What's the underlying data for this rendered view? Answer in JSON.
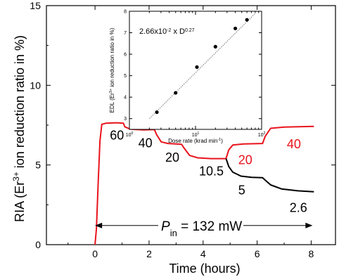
{
  "chart_data": [
    {
      "type": "line",
      "xlabel": "Time (hours)",
      "ylabel_parts": {
        "pre": "RIA (Er",
        "sup": "3+",
        "post": " ion reduction ratio in %)"
      },
      "xlim": [
        -1.8,
        8.9
      ],
      "ylim": [
        0,
        15
      ],
      "xticks": [
        0,
        2,
        4,
        6,
        8
      ],
      "yticks": [
        0,
        5,
        10,
        15
      ],
      "grid": false,
      "colors": {
        "red": "#e8141c",
        "black": "#000000"
      },
      "series": [
        {
          "color": "#e8141c",
          "points": [
            [
              0,
              0
            ],
            [
              0.05,
              1.0
            ],
            [
              0.12,
              4.0
            ],
            [
              0.18,
              6.5
            ],
            [
              0.25,
              7.55
            ],
            [
              0.4,
              7.62
            ],
            [
              0.8,
              7.65
            ],
            [
              1.05,
              7.62
            ],
            [
              1.1,
              7.4
            ],
            [
              1.3,
              7.25
            ],
            [
              1.8,
              7.2
            ],
            [
              2.2,
              7.22
            ],
            [
              2.28,
              6.9
            ],
            [
              2.45,
              6.45
            ],
            [
              2.7,
              6.35
            ],
            [
              3.2,
              6.3
            ],
            [
              3.3,
              6.05
            ],
            [
              3.5,
              5.6
            ],
            [
              3.8,
              5.45
            ],
            [
              4.3,
              5.4
            ],
            [
              4.85,
              5.4
            ],
            [
              4.95,
              5.95
            ],
            [
              5.1,
              6.25
            ],
            [
              5.5,
              6.32
            ],
            [
              6.2,
              6.35
            ],
            [
              6.3,
              6.8
            ],
            [
              6.5,
              7.3
            ],
            [
              7.0,
              7.38
            ],
            [
              8.1,
              7.42
            ]
          ]
        },
        {
          "color": "#000000",
          "points": [
            [
              4.85,
              5.4
            ],
            [
              4.95,
              4.9
            ],
            [
              5.1,
              4.55
            ],
            [
              5.4,
              4.3
            ],
            [
              5.8,
              4.22
            ],
            [
              6.2,
              4.2
            ],
            [
              6.3,
              4.05
            ],
            [
              6.5,
              3.75
            ],
            [
              6.9,
              3.5
            ],
            [
              7.5,
              3.38
            ],
            [
              8.1,
              3.32
            ]
          ]
        }
      ],
      "annotations": [
        {
          "text": "60",
          "x": 0.55,
          "y": 6.6,
          "color": "#000000"
        },
        {
          "text": "40",
          "x": 1.6,
          "y": 6.1,
          "color": "#000000"
        },
        {
          "text": "20",
          "x": 2.6,
          "y": 5.2,
          "color": "#000000"
        },
        {
          "text": "10.5",
          "x": 3.85,
          "y": 4.35,
          "color": "#000000"
        },
        {
          "text": "20",
          "x": 5.3,
          "y": 5.05,
          "color": "#e8141c"
        },
        {
          "text": "40",
          "x": 7.1,
          "y": 6.05,
          "color": "#e8141c"
        },
        {
          "text": "5",
          "x": 5.3,
          "y": 3.15,
          "color": "#000000"
        },
        {
          "text": "2.6",
          "x": 7.2,
          "y": 2.05,
          "color": "#000000"
        }
      ],
      "pin": {
        "label": "P",
        "sub": "in",
        "value": " = 132 mW",
        "y": 1.2,
        "x_start": 0.0,
        "x_end": 8.05
      }
    },
    {
      "type": "scatter",
      "xlabel_text": "Dose rate (krad min",
      "xlabel_sup": "-1",
      "xlabel_close": ")",
      "ylabel_parts": {
        "pre": "EDL (Er",
        "sup": "3+",
        "post": " ion reduction ratio in %)"
      },
      "xscale": "log",
      "xlim": [
        1,
        100
      ],
      "ylim": [
        2.5,
        8
      ],
      "yticks": [
        3,
        4,
        5,
        6,
        7,
        8
      ],
      "xtick_labels": [
        {
          "x": 1,
          "base": "10",
          "sup": "0"
        },
        {
          "x": 10,
          "base": "10",
          "sup": "1"
        },
        {
          "x": 100,
          "base": "10",
          "sup": "2"
        }
      ],
      "points": [
        [
          2.6,
          3.3
        ],
        [
          5.0,
          4.2
        ],
        [
          10.5,
          5.4
        ],
        [
          20,
          6.35
        ],
        [
          40,
          7.2
        ],
        [
          60,
          7.6
        ]
      ],
      "fit_line": {
        "x": [
          2.0,
          80
        ],
        "y": [
          3.0,
          7.9
        ]
      },
      "formula": {
        "pre": "2.66x10",
        "sup1": "-2",
        "mid": " x D",
        "sup2": "0.27"
      }
    }
  ]
}
